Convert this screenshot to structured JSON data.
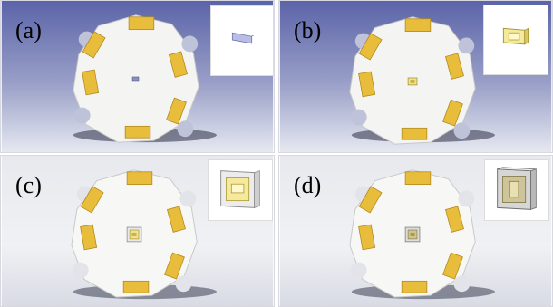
{
  "panels": [
    {
      "label": "(a)",
      "stage": "chip"
    },
    {
      "label": "(b)",
      "stage": "chip-with-frame"
    },
    {
      "label": "(c)",
      "stage": "package"
    },
    {
      "label": "(d)",
      "stage": "package-with-lens"
    }
  ],
  "colors": {
    "background_top": "#5a63a8",
    "background_bottom": "#e4e6ef",
    "board": "#f4f4f2",
    "pad": "#e9bd3c",
    "pad_edge": "#b28a1e",
    "shadow": "#2c2f44"
  }
}
